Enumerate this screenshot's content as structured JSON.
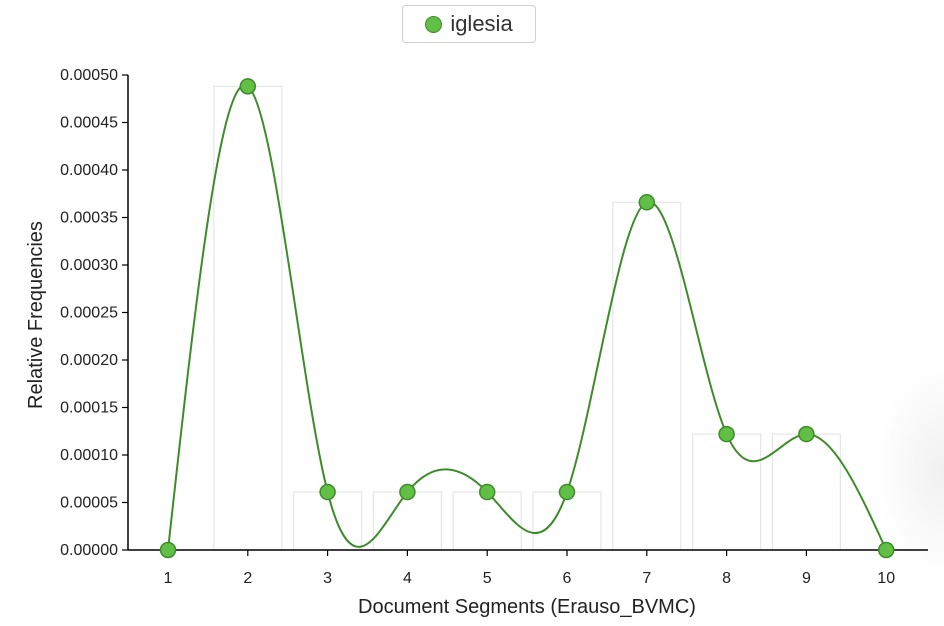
{
  "legend": {
    "label": "iglesia",
    "color": "#62bf46"
  },
  "chart_data": {
    "type": "line",
    "smooth": true,
    "background_bars": true,
    "xlabel": "Document Segments (Erauso_BVMC)",
    "ylabel": "Relative Frequencies",
    "x": [
      1,
      2,
      3,
      4,
      5,
      6,
      7,
      8,
      9,
      10
    ],
    "xticks": [
      "1",
      "2",
      "3",
      "4",
      "5",
      "6",
      "7",
      "8",
      "9",
      "10"
    ],
    "ylim": [
      0,
      0.0005
    ],
    "yticks": [
      "0.00000",
      "0.00005",
      "0.00010",
      "0.00015",
      "0.00020",
      "0.00025",
      "0.00030",
      "0.00035",
      "0.00040",
      "0.00045",
      "0.00050"
    ],
    "grid": false,
    "legend_position": "top-center",
    "series": [
      {
        "name": "iglesia",
        "color": "#62bf46",
        "line_color": "#3d8c2a",
        "values": [
          0,
          0.000488,
          6.1e-05,
          6.1e-05,
          6.1e-05,
          6.1e-05,
          0.000366,
          0.000122,
          0.000122,
          0
        ]
      }
    ]
  }
}
